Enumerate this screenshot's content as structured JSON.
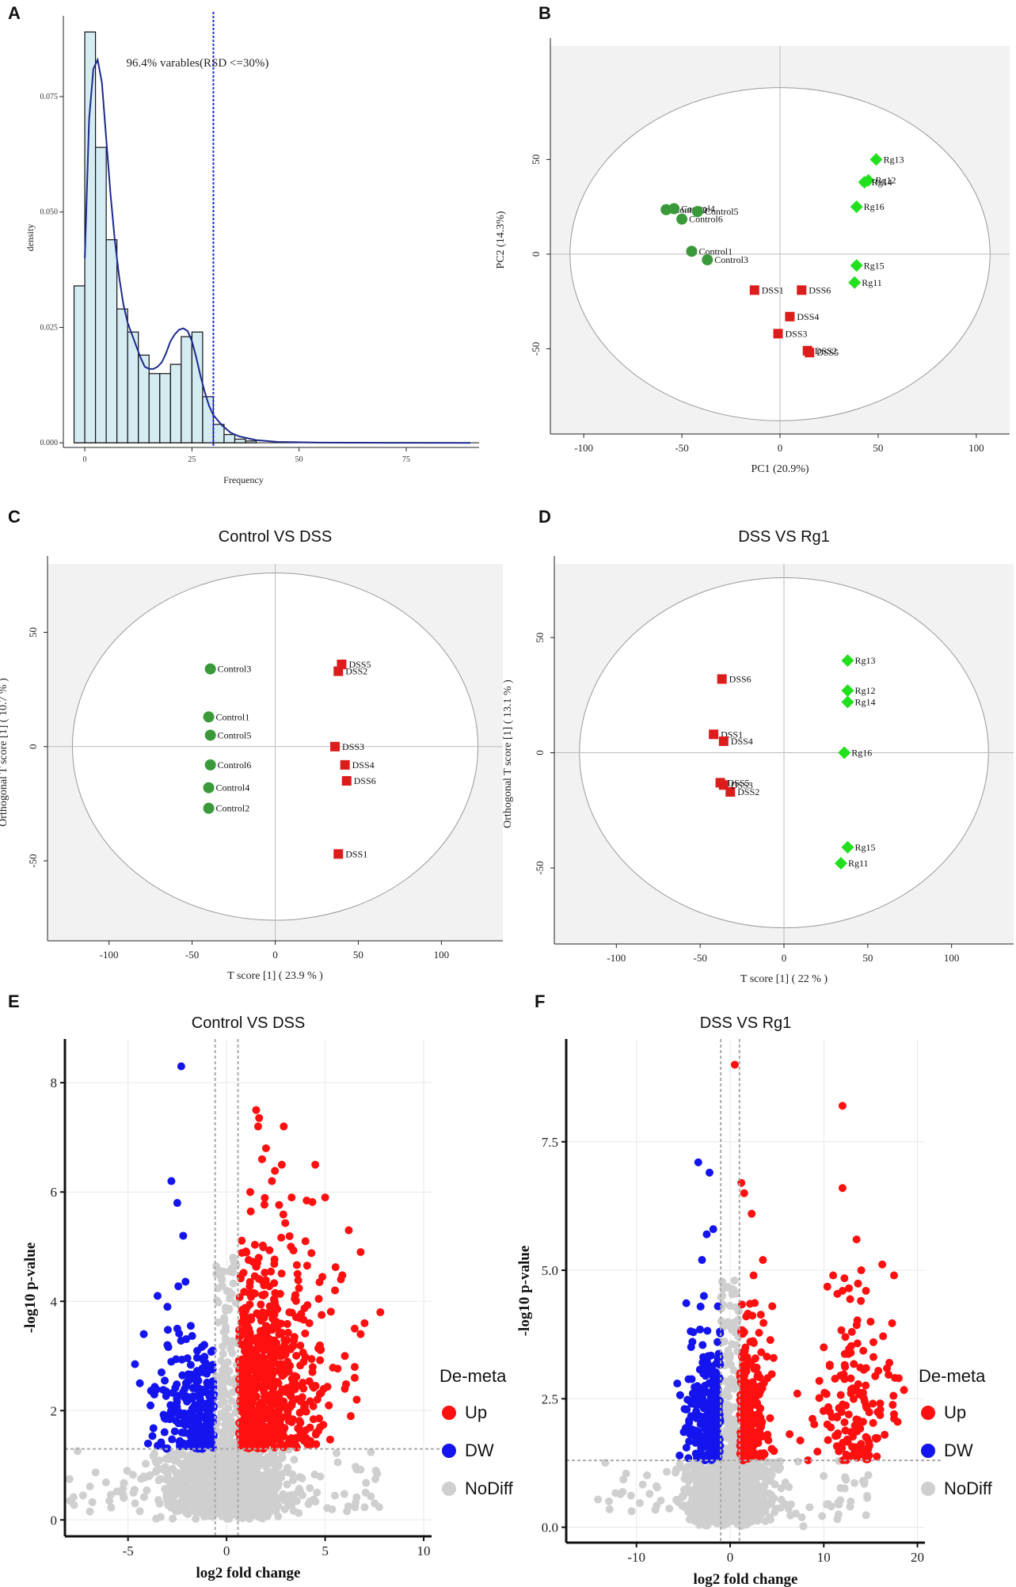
{
  "colors": {
    "control": "#3a9a3a",
    "dss": "#dd1c1c",
    "rg1": "#22e01e",
    "up": "#ff1010",
    "dw": "#1414ee",
    "nodiff": "#cfcfcf",
    "hist_fill": "#d4ecf2",
    "density_line": "#1c2a8c",
    "cutoff_line": "#2020ff"
  },
  "chart_data": [
    {
      "panel": "A",
      "type": "histogram",
      "title": "",
      "xlabel": "Frequency",
      "ylabel": "density",
      "xlim": [
        -5,
        92
      ],
      "ylim": [
        -0.001,
        0.0925
      ],
      "xticks": [
        "0",
        "25",
        "50",
        "75"
      ],
      "yticks": [
        "0.000",
        "0.025",
        "0.050",
        "0.075"
      ],
      "bin_width": 2.5,
      "bin_start": -2.5,
      "bars": [
        0.034,
        0.089,
        0.064,
        0.044,
        0.029,
        0.024,
        0.019,
        0.015,
        0.015,
        0.017,
        0.023,
        0.024,
        0.01,
        0.004,
        0.0018,
        0.0008,
        0.0004
      ],
      "density_curve": [
        [
          0,
          0.04
        ],
        [
          1,
          0.07
        ],
        [
          2,
          0.081
        ],
        [
          3,
          0.083
        ],
        [
          4,
          0.078
        ],
        [
          5,
          0.066
        ],
        [
          6,
          0.054
        ],
        [
          7,
          0.044
        ],
        [
          8,
          0.036
        ],
        [
          9,
          0.03
        ],
        [
          10,
          0.026
        ],
        [
          11,
          0.0235
        ],
        [
          12,
          0.021
        ],
        [
          13,
          0.0185
        ],
        [
          14,
          0.0165
        ],
        [
          15,
          0.016
        ],
        [
          16,
          0.016
        ],
        [
          17,
          0.0165
        ],
        [
          18,
          0.0175
        ],
        [
          19,
          0.0195
        ],
        [
          20,
          0.022
        ],
        [
          21,
          0.0235
        ],
        [
          22,
          0.0245
        ],
        [
          23,
          0.0248
        ],
        [
          24,
          0.0242
        ],
        [
          25,
          0.022
        ],
        [
          26,
          0.0185
        ],
        [
          27,
          0.0145
        ],
        [
          28,
          0.011
        ],
        [
          29,
          0.008
        ],
        [
          30,
          0.006
        ],
        [
          32,
          0.0038
        ],
        [
          34,
          0.0022
        ],
        [
          36,
          0.0014
        ],
        [
          40,
          0.0006
        ],
        [
          45,
          0.0002
        ],
        [
          55,
          5e-05
        ],
        [
          70,
          1e-05
        ],
        [
          90,
          0.0
        ]
      ],
      "cutoff_x": 30,
      "annotation": "96.4% varables(RSD <=30%)"
    },
    {
      "panel": "B",
      "type": "scatter",
      "title": "",
      "xlabel": "PC1 (20.9%)",
      "ylabel": "PC2 (14.3%)",
      "xlim": [
        -117,
        117
      ],
      "ylim": [
        -95,
        110
      ],
      "xticks": [
        -100,
        -50,
        0,
        50,
        100
      ],
      "yticks": [
        -50,
        0,
        50
      ],
      "ellipse": {
        "rx": 107,
        "ry": 88
      },
      "series": [
        {
          "name": "Control",
          "shape": "circle",
          "points": [
            {
              "label": "Control1",
              "x": -45,
              "y": 1.5
            },
            {
              "label": "Control2",
              "x": -58,
              "y": 23.5
            },
            {
              "label": "Control3",
              "x": -37,
              "y": -3
            },
            {
              "label": "Control4",
              "x": -54,
              "y": 24
            },
            {
              "label": "Control5",
              "x": -42,
              "y": 22.5
            },
            {
              "label": "Control6",
              "x": -50,
              "y": 18.5
            }
          ]
        },
        {
          "name": "DSS",
          "shape": "square",
          "points": [
            {
              "label": "DSS1",
              "x": -13,
              "y": -19
            },
            {
              "label": "DSS2",
              "x": 14,
              "y": -51
            },
            {
              "label": "DSS3",
              "x": -1,
              "y": -42
            },
            {
              "label": "DSS4",
              "x": 5,
              "y": -33
            },
            {
              "label": "DSS5",
              "x": 15,
              "y": -52
            },
            {
              "label": "DSS6",
              "x": 11,
              "y": -19
            }
          ]
        },
        {
          "name": "Rg1",
          "shape": "diamond",
          "points": [
            {
              "label": "Rg11",
              "x": 38,
              "y": -15
            },
            {
              "label": "Rg12",
              "x": 45,
              "y": 39
            },
            {
              "label": "Rg13",
              "x": 49,
              "y": 50
            },
            {
              "label": "Rg14",
              "x": 43,
              "y": 38
            },
            {
              "label": "Rg15",
              "x": 39,
              "y": -6
            },
            {
              "label": "Rg16",
              "x": 39,
              "y": 25
            }
          ]
        }
      ],
      "overlap_labels": [
        {
          "text": "Control2",
          "x": -58,
          "y": 23.5
        },
        {
          "text": "Control4",
          "x": -54,
          "y": 24
        }
      ]
    },
    {
      "panel": "C",
      "type": "scatter",
      "title": "Control VS DSS",
      "xlabel": "T score [1] ( 23.9 % )",
      "ylabel": "Orthogonal T score [1] ( 10.7 % )",
      "xlim": [
        -137,
        137
      ],
      "ylim": [
        -85,
        80
      ],
      "xticks": [
        -100,
        -50,
        0,
        50,
        100
      ],
      "yticks": [
        -50,
        0,
        50
      ],
      "ellipse": {
        "rx": 122,
        "ry": 76
      },
      "series": [
        {
          "name": "Control",
          "shape": "circle",
          "points": [
            {
              "label": "Control1",
              "x": -40,
              "y": 13
            },
            {
              "label": "Control2",
              "x": -40,
              "y": -27
            },
            {
              "label": "Control3",
              "x": -39,
              "y": 34
            },
            {
              "label": "Control4",
              "x": -40,
              "y": -18
            },
            {
              "label": "Control5",
              "x": -39,
              "y": 5
            },
            {
              "label": "Control6",
              "x": -39,
              "y": -8
            }
          ]
        },
        {
          "name": "DSS",
          "shape": "square",
          "points": [
            {
              "label": "DSS1",
              "x": 38,
              "y": -47
            },
            {
              "label": "DSS2",
              "x": 38,
              "y": 33
            },
            {
              "label": "DSS3",
              "x": 36,
              "y": 0
            },
            {
              "label": "DSS4",
              "x": 42,
              "y": -8
            },
            {
              "label": "DSS5",
              "x": 40,
              "y": 36
            },
            {
              "label": "DSS6",
              "x": 43,
              "y": -15
            }
          ]
        }
      ]
    },
    {
      "panel": "D",
      "type": "scatter",
      "title": "DSS VS Rg1",
      "xlabel": "T score [1] ( 22 % )",
      "ylabel": "Orthogonal T score [1] ( 13.1 % )",
      "xlim": [
        -137,
        137
      ],
      "ylim": [
        -83,
        82
      ],
      "xticks": [
        -100,
        -50,
        0,
        50,
        100
      ],
      "yticks": [
        -50,
        0,
        50
      ],
      "ellipse": {
        "rx": 122,
        "ry": 76
      },
      "series": [
        {
          "name": "DSS",
          "shape": "square",
          "points": [
            {
              "label": "DSS1",
              "x": -42,
              "y": 8
            },
            {
              "label": "DSS2",
              "x": -32,
              "y": -17
            },
            {
              "label": "DSS3",
              "x": -36,
              "y": -14
            },
            {
              "label": "DSS4",
              "x": -36,
              "y": 5
            },
            {
              "label": "DSS5",
              "x": -38,
              "y": -13
            },
            {
              "label": "DSS6",
              "x": -37,
              "y": 32
            }
          ]
        },
        {
          "name": "Rg1",
          "shape": "diamond",
          "points": [
            {
              "label": "Rg11",
              "x": 34,
              "y": -48
            },
            {
              "label": "Rg12",
              "x": 38,
              "y": 27
            },
            {
              "label": "Rg13",
              "x": 38,
              "y": 40
            },
            {
              "label": "Rg14",
              "x": 38,
              "y": 22
            },
            {
              "label": "Rg15",
              "x": 38,
              "y": -41
            },
            {
              "label": "Rg16",
              "x": 36,
              "y": 0
            }
          ]
        }
      ]
    },
    {
      "panel": "E",
      "type": "volcano",
      "title": "Control VS DSS",
      "xlabel": "log2 fold change",
      "ylabel": "-log10 p-value",
      "xlim": [
        -8.2,
        10.4
      ],
      "ylim": [
        -0.3,
        8.8
      ],
      "xticks": [
        -5,
        0,
        5,
        10
      ],
      "yticks": [
        0,
        2,
        4,
        6,
        8
      ],
      "fc_cutoff": [
        -0.58,
        0.58
      ],
      "p_cutoff": 1.3,
      "legend_title": "De-meta",
      "legend": [
        "Up",
        "DW",
        "NoDiff"
      ],
      "sample_counts": {
        "Up": 700,
        "DW": 260,
        "NoDiff": 1400
      },
      "highlight_points": {
        "Up": [
          [
            1.5,
            7.5
          ],
          [
            2.0,
            6.8
          ],
          [
            2.8,
            6.5
          ],
          [
            3.3,
            5.9
          ],
          [
            3.6,
            4.5
          ],
          [
            4.0,
            5.1
          ],
          [
            4.2,
            3.6
          ],
          [
            5.5,
            4.2
          ],
          [
            5.8,
            4.4
          ],
          [
            6.2,
            5.3
          ],
          [
            6.5,
            3.5
          ],
          [
            6.8,
            3.4
          ],
          [
            6.5,
            2.6
          ],
          [
            6.0,
            2.4
          ],
          [
            6.0,
            3.0
          ],
          [
            6.5,
            2.8
          ],
          [
            6.6,
            2.2
          ],
          [
            6.3,
            1.9
          ],
          [
            7.0,
            3.6
          ],
          [
            7.8,
            3.8
          ],
          [
            6.8,
            4.9
          ],
          [
            4.5,
            6.5
          ],
          [
            5.0,
            5.9
          ],
          [
            1.6,
            7.2
          ],
          [
            2.9,
            7.2
          ],
          [
            2.3,
            6.2
          ],
          [
            1.8,
            6.6
          ],
          [
            1.2,
            6.0
          ]
        ],
        "DW": [
          [
            -2.3,
            8.3
          ],
          [
            -2.8,
            6.2
          ],
          [
            -2.5,
            5.8
          ],
          [
            -2.2,
            5.2
          ],
          [
            -3.0,
            3.9
          ],
          [
            -3.5,
            4.1
          ],
          [
            -4.2,
            3.4
          ],
          [
            -4.4,
            2.5
          ],
          [
            -3.3,
            2.7
          ],
          [
            -3.0,
            3.2
          ],
          [
            -2.5,
            3.5
          ]
        ]
      }
    },
    {
      "panel": "F",
      "type": "volcano",
      "title": "DSS VS Rg1",
      "xlabel": "log2 fold change",
      "ylabel": "-log10 p-value",
      "xlim": [
        -17.5,
        20.8
      ],
      "ylim": [
        -0.3,
        9.5
      ],
      "xticks": [
        -10,
        0,
        10,
        20
      ],
      "yticks": [
        "0.0",
        "2.5",
        "5.0",
        "7.5"
      ],
      "fc_cutoff": [
        -1,
        1
      ],
      "p_cutoff": 1.3,
      "legend_title": "De-meta",
      "legend": [
        "Up",
        "DW",
        "NoDiff"
      ],
      "sample_counts": {
        "Up": 420,
        "DW": 260,
        "NoDiff": 1300
      },
      "highlight_points": {
        "Up": [
          [
            0.5,
            9.0
          ],
          [
            12,
            8.2
          ],
          [
            12,
            6.6
          ],
          [
            1.2,
            6.7
          ],
          [
            13.5,
            5.6
          ],
          [
            17.5,
            4.9
          ],
          [
            14,
            5.0
          ],
          [
            2.5,
            4.9
          ],
          [
            3.5,
            5.2
          ],
          [
            2.3,
            6.1
          ],
          [
            1.5,
            6.5
          ],
          [
            4.5,
            4.3
          ],
          [
            17,
            3.2
          ],
          [
            15,
            4.0
          ],
          [
            17.5,
            2.2
          ],
          [
            18,
            2.9
          ],
          [
            16.5,
            1.8
          ],
          [
            12,
            4.6
          ],
          [
            11,
            4.9
          ],
          [
            10,
            3.5
          ],
          [
            14.5,
            4.6
          ],
          [
            13,
            3.8
          ],
          [
            15.3,
            3.6
          ]
        ],
        "DW": [
          [
            -3.4,
            7.1
          ],
          [
            -2.2,
            6.9
          ],
          [
            -1.8,
            5.8
          ],
          [
            -2.5,
            5.7
          ],
          [
            -3.0,
            5.2
          ],
          [
            -2.8,
            4.5
          ],
          [
            -1.3,
            4.3
          ]
        ]
      }
    }
  ],
  "panels": {
    "A": {
      "label": "A"
    },
    "B": {
      "label": "B"
    },
    "C": {
      "label": "C"
    },
    "D": {
      "label": "D"
    },
    "E": {
      "label": "E"
    },
    "F": {
      "label": "F"
    }
  }
}
